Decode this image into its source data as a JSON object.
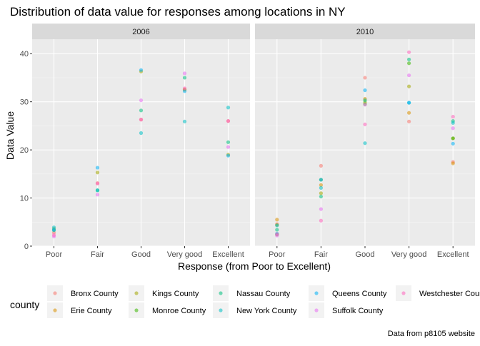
{
  "chart_data": {
    "type": "scatter",
    "title": "Distribution of data value for responses among locations in NY",
    "xlabel": "Response (from Poor to Excellent)",
    "ylabel": "Data Value",
    "caption": "Data from p8105 website",
    "categories": [
      "Poor",
      "Fair",
      "Good",
      "Very good",
      "Excellent"
    ],
    "ylim": [
      0,
      43
    ],
    "y_ticks": [
      0,
      10,
      20,
      30,
      40
    ],
    "grid": true,
    "legend": {
      "title": "county",
      "placement": "bottom",
      "entries": [
        {
          "name": "Bronx County",
          "color": "#F8766D"
        },
        {
          "name": "Erie County",
          "color": "#D89000"
        },
        {
          "name": "Kings County",
          "color": "#A3A500"
        },
        {
          "name": "Monroe County",
          "color": "#39B600"
        },
        {
          "name": "Nassau County",
          "color": "#00BF7D"
        },
        {
          "name": "New York County",
          "color": "#00BFC4"
        },
        {
          "name": "Queens County",
          "color": "#00B0F6"
        },
        {
          "name": "Suffolk County",
          "color": "#E76BF3"
        },
        {
          "name": "Westchester County",
          "color": "#FF62BC"
        }
      ]
    },
    "panels": [
      {
        "label": "2006",
        "series": [
          {
            "name": "Bronx County",
            "values": [
              2.8,
              13.1,
              26.3,
              32.6,
              26.0
            ]
          },
          {
            "name": "Kings County",
            "values": [
              3.6,
              15.3,
              36.3,
              32.5,
              19.0
            ]
          },
          {
            "name": "Nassau County",
            "values": [
              3.3,
              11.6,
              28.2,
              35.0,
              21.6
            ]
          },
          {
            "name": "New York County",
            "values": [
              3.9,
              11.6,
              23.5,
              25.9,
              28.8
            ]
          },
          {
            "name": "Queens County",
            "values": [
              3.4,
              16.3,
              36.6,
              32.2,
              18.8
            ]
          },
          {
            "name": "Suffolk County",
            "values": [
              2.0,
              10.7,
              30.3,
              35.9,
              20.6
            ]
          },
          {
            "name": "Westchester County",
            "values": [
              2.3,
              13.0,
              26.3,
              32.8,
              26.0
            ]
          }
        ]
      },
      {
        "label": "2010",
        "series": [
          {
            "name": "Bronx County",
            "values": [
              4.6,
              16.7,
              35.0,
              25.9,
              17.5
            ]
          },
          {
            "name": "Erie County",
            "values": [
              5.5,
              12.7,
              30.6,
              27.7,
              17.2
            ]
          },
          {
            "name": "Kings County",
            "values": [
              4.4,
              11.0,
              29.9,
              33.2,
              22.4
            ]
          },
          {
            "name": "Monroe County",
            "values": [
              2.4,
              13.8,
              29.5,
              38.0,
              22.4
            ]
          },
          {
            "name": "Nassau County",
            "values": [
              3.4,
              10.3,
              30.3,
              38.8,
              26.0
            ]
          },
          {
            "name": "New York County",
            "values": [
              4.3,
              12.1,
              21.4,
              29.8,
              25.6
            ]
          },
          {
            "name": "Queens County",
            "values": [
              2.6,
              13.8,
              32.4,
              29.8,
              21.3
            ]
          },
          {
            "name": "Suffolk County",
            "values": [
              2.2,
              7.7,
              29.4,
              35.5,
              24.5
            ]
          },
          {
            "name": "Westchester County",
            "values": [
              2.5,
              5.3,
              25.3,
              40.3,
              26.9
            ]
          }
        ]
      }
    ]
  }
}
